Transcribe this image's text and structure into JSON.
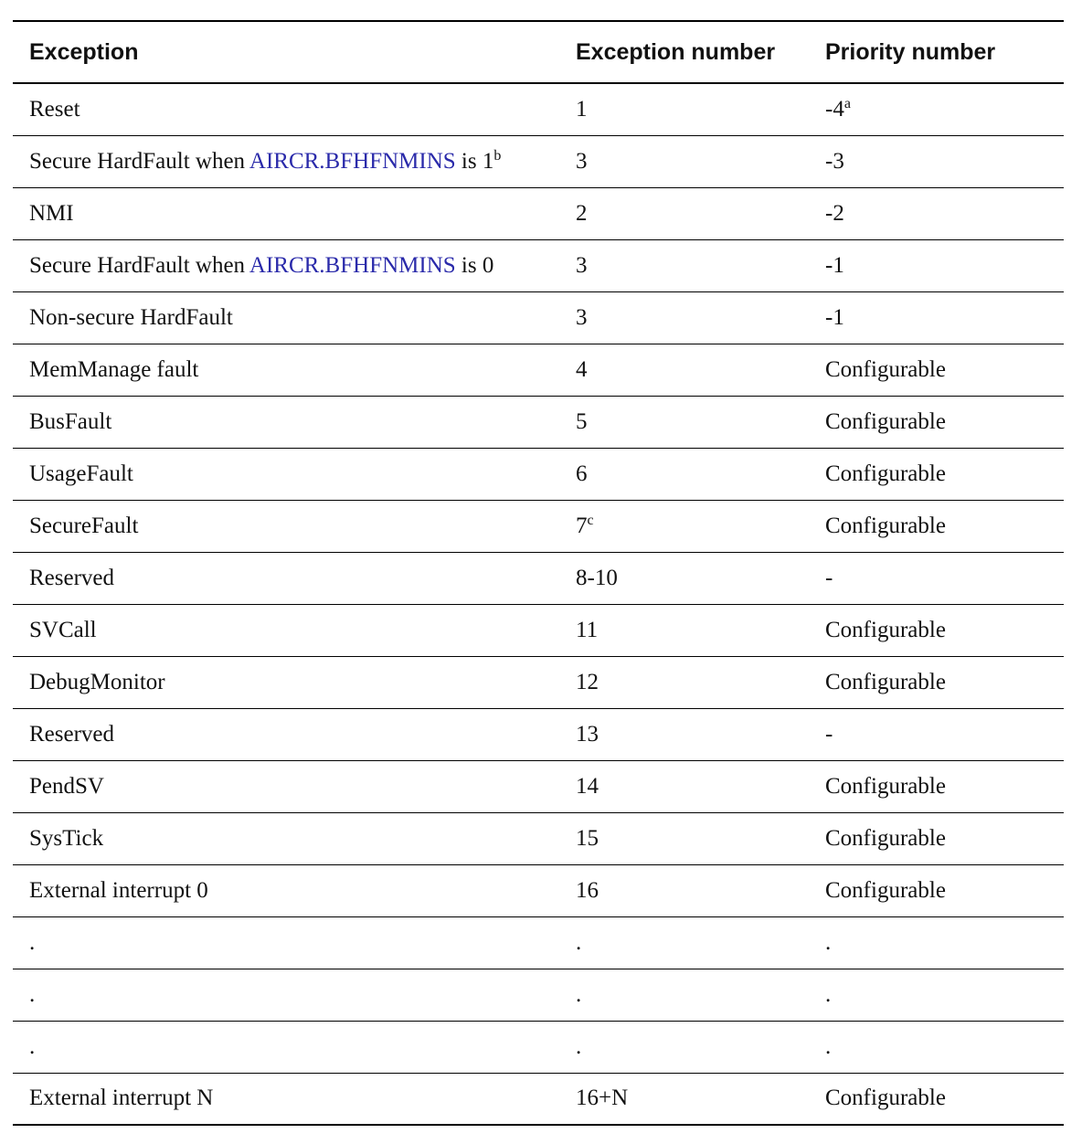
{
  "header": {
    "col1": "Exception",
    "col2": "Exception number",
    "col3": "Priority number"
  },
  "rows": [
    {
      "exception": "Reset",
      "number": "1",
      "number_note": "",
      "priority": "-4",
      "priority_note": "a"
    },
    {
      "exception_pre": "Secure HardFault when ",
      "exception_link": "AIRCR.BFHFNMINS",
      "exception_post": " is 1",
      "exception_note": "b",
      "number": "3",
      "priority": "-3"
    },
    {
      "exception": "NMI",
      "number": "2",
      "priority": "-2"
    },
    {
      "exception_pre": "Secure HardFault when ",
      "exception_link": "AIRCR.BFHFNMINS",
      "exception_post": " is 0",
      "number": "3",
      "priority": "-1"
    },
    {
      "exception": "Non-secure HardFault",
      "number": "3",
      "priority": "-1"
    },
    {
      "exception": "MemManage fault",
      "number": "4",
      "priority": "Configurable"
    },
    {
      "exception": "BusFault",
      "number": "5",
      "priority": "Configurable"
    },
    {
      "exception": "UsageFault",
      "number": "6",
      "priority": "Configurable"
    },
    {
      "exception": "SecureFault",
      "number": "7",
      "number_note": "c",
      "priority": "Configurable"
    },
    {
      "exception": "Reserved",
      "number": "8-10",
      "priority": "-"
    },
    {
      "exception": "SVCall",
      "number": "11",
      "priority": "Configurable"
    },
    {
      "exception": "DebugMonitor",
      "number": "12",
      "priority": "Configurable"
    },
    {
      "exception": "Reserved",
      "number": "13",
      "priority": "-"
    },
    {
      "exception": "PendSV",
      "number": "14",
      "priority": "Configurable"
    },
    {
      "exception": "SysTick",
      "number": "15",
      "priority": "Configurable"
    },
    {
      "exception": "External interrupt 0",
      "number": "16",
      "priority": "Configurable"
    },
    {
      "exception": ".",
      "number": ".",
      "priority": "."
    },
    {
      "exception": ".",
      "number": ".",
      "priority": "."
    },
    {
      "exception": ".",
      "number": ".",
      "priority": "."
    },
    {
      "exception": "External interrupt N",
      "number": "16+N",
      "priority": "Configurable"
    }
  ],
  "colors": {
    "link": "#2a2aaa",
    "text": "#111111",
    "rule": "#000000"
  }
}
